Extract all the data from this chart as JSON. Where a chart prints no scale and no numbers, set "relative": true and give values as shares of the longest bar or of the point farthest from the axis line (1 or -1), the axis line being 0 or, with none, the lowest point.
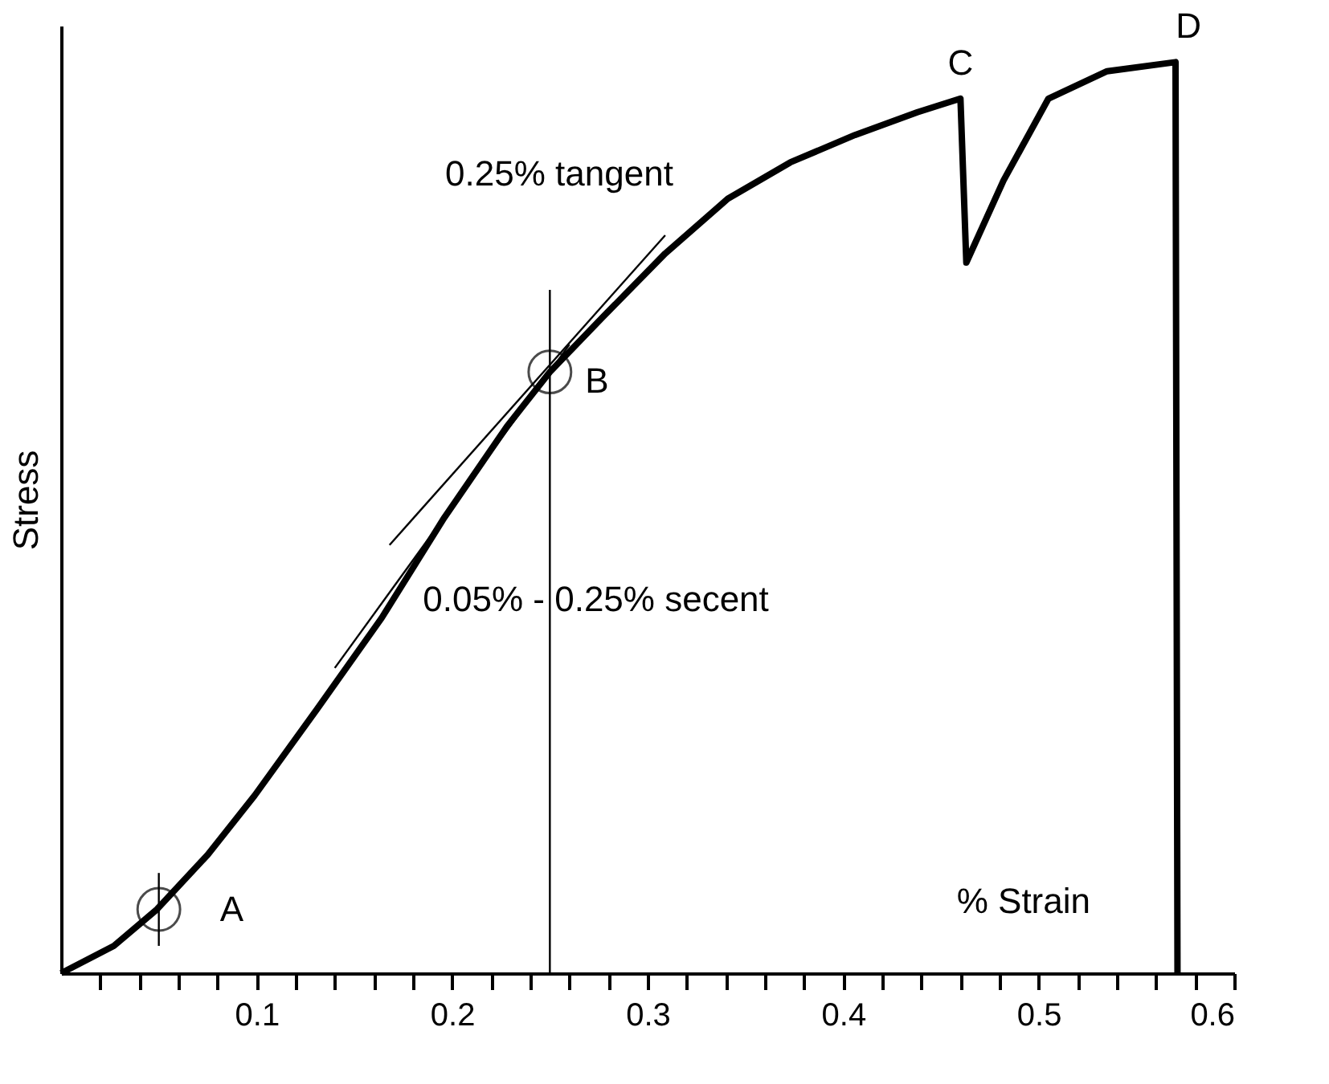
{
  "chart_data": {
    "type": "line",
    "xlabel": "% Strain",
    "ylabel": "Stress",
    "relative": true,
    "xlim": [
      0,
      0.6
    ],
    "xticks": [
      {
        "value": 0.02,
        "label": null
      },
      {
        "value": 0.04,
        "label": null
      },
      {
        "value": 0.06,
        "label": null
      },
      {
        "value": 0.08,
        "label": null
      },
      0.1,
      {
        "value": 0.12,
        "label": null
      },
      {
        "value": 0.14,
        "label": null
      },
      {
        "value": 0.16,
        "label": null
      },
      {
        "value": 0.18,
        "label": null
      },
      0.2,
      {
        "value": 0.22,
        "label": null
      },
      {
        "value": 0.24,
        "label": null
      },
      {
        "value": 0.26,
        "label": null
      },
      {
        "value": 0.28,
        "label": null
      },
      0.3,
      {
        "value": 0.32,
        "label": null
      },
      {
        "value": 0.34,
        "label": null
      },
      {
        "value": 0.36,
        "label": null
      },
      {
        "value": 0.38,
        "label": null
      },
      0.4,
      {
        "value": 0.42,
        "label": null
      },
      {
        "value": 0.44,
        "label": null
      },
      {
        "value": 0.46,
        "label": null
      },
      {
        "value": 0.48,
        "label": null
      },
      0.5,
      {
        "value": 0.52,
        "label": null
      },
      {
        "value": 0.54,
        "label": null
      },
      {
        "value": 0.56,
        "label": null
      },
      {
        "value": 0.58,
        "label": null
      },
      0.6
    ],
    "series": [
      {
        "color": "#000000",
        "x": [
          0,
          0.027,
          0.049,
          0.075,
          0.099,
          0.131,
          0.164,
          0.196,
          0.228,
          0.25,
          0.277,
          0.309,
          0.341,
          0.373,
          0.406,
          0.438,
          0.46,
          0.463,
          0.482,
          0.505,
          0.535,
          0.57,
          0.571
        ],
        "values": [
          0,
          0.03,
          0.07,
          0.13,
          0.195,
          0.29,
          0.39,
          0.5,
          0.6,
          0.66,
          0.72,
          0.79,
          0.85,
          0.89,
          0.92,
          0.945,
          0.96,
          0.78,
          0.87,
          0.96,
          0.99,
          1.0,
          0
        ]
      },
      {
        "type": "line",
        "color": "#000000",
        "x": [
          0.168,
          0.309
        ],
        "values": [
          0.47,
          0.81
        ]
      },
      {
        "type": "line",
        "color": "#000000",
        "x": [
          0.14,
          0.26
        ],
        "values": [
          0.335,
          0.69
        ]
      },
      {
        "type": "line",
        "color": "#000000",
        "x": [
          0.05,
          0.05
        ],
        "values": [
          0.03,
          0.11
        ]
      },
      {
        "type": "line",
        "color": "#000000",
        "x": [
          0.25,
          0.25
        ],
        "values": [
          0,
          0.75
        ]
      },
      {
        "type": "scatter",
        "marker": "circle",
        "color": "#000000",
        "x": [
          0.05,
          0.25
        ],
        "values": [
          0.07,
          0.66
        ]
      }
    ],
    "annotations": [
      {
        "text": "A",
        "x": 0.05,
        "y": 0.07
      },
      {
        "text": "B",
        "x": 0.25,
        "y": 0.66
      },
      {
        "text": "C",
        "x": 0.46,
        "y": 0.96
      },
      {
        "text": "D",
        "x": 0.57,
        "y": 1.0
      },
      {
        "text": "0.25% tangent",
        "x": 0.309,
        "y": 0.81
      },
      {
        "text": "0.05% - 0.25% secent",
        "x": 0.25,
        "y": 0.41
      }
    ]
  }
}
